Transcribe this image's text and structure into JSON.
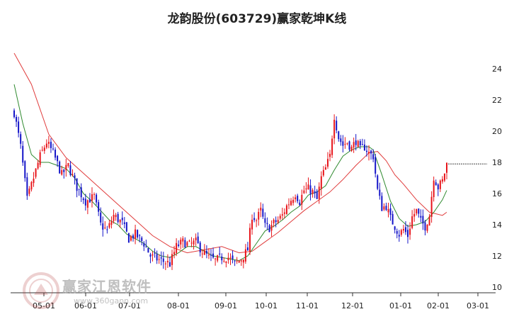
{
  "title": "龙韵股份(603729)赢家乾坤K线",
  "watermark": {
    "text": "赢家江恩软件",
    "url": "www.360gann.com"
  },
  "colors": {
    "up": "#e8151b",
    "down": "#1414c8",
    "ma_long": "#e03c3c",
    "ma_short": "#2f8a2f",
    "axis": "#333333",
    "last_price_line": "#444444"
  },
  "chart_data": {
    "type": "candlestick",
    "title": "龙韵股份(603729)赢家乾坤K线",
    "x_tick_labels": [
      "05-01",
      "06-01",
      "07-01",
      "08-01",
      "09-01",
      "10-01",
      "11-01",
      "12-01",
      "01-01",
      "02-01",
      "03-01"
    ],
    "y_tick_labels": [
      "10",
      "12",
      "14",
      "16",
      "18",
      "20",
      "22",
      "24"
    ],
    "ylim": [
      10,
      24.5
    ],
    "grid": false,
    "last_price": 17.9,
    "close_path": [
      [
        0,
        21.2
      ],
      [
        3,
        19.0
      ],
      [
        6,
        15.6
      ],
      [
        9,
        17.0
      ],
      [
        12,
        18.4
      ],
      [
        15,
        19.3
      ],
      [
        18,
        18.6
      ],
      [
        22,
        17.2
      ],
      [
        25,
        17.8
      ],
      [
        29,
        16.4
      ],
      [
        33,
        15.5
      ],
      [
        37,
        15.8
      ],
      [
        40,
        14.0
      ],
      [
        43,
        13.6
      ],
      [
        46,
        14.6
      ],
      [
        50,
        14.1
      ],
      [
        53,
        13.1
      ],
      [
        56,
        13.4
      ],
      [
        60,
        12.8
      ],
      [
        63,
        12.0
      ],
      [
        66,
        11.8
      ],
      [
        70,
        11.6
      ],
      [
        72,
        11.5
      ],
      [
        75,
        12.6
      ],
      [
        78,
        12.9
      ],
      [
        81,
        12.7
      ],
      [
        84,
        12.9
      ],
      [
        87,
        12.3
      ],
      [
        90,
        11.9
      ],
      [
        93,
        11.7
      ],
      [
        96,
        11.9
      ],
      [
        99,
        11.9
      ],
      [
        102,
        11.5
      ],
      [
        105,
        11.8
      ],
      [
        108,
        12.4
      ],
      [
        110,
        14.6
      ],
      [
        112,
        14.3
      ],
      [
        114,
        14.9
      ],
      [
        116,
        13.9
      ],
      [
        118,
        13.8
      ],
      [
        120,
        14.1
      ],
      [
        122,
        14.3
      ],
      [
        124,
        14.6
      ],
      [
        126,
        15.2
      ],
      [
        128,
        15.6
      ],
      [
        130,
        16.0
      ],
      [
        132,
        15.5
      ],
      [
        134,
        16.2
      ],
      [
        136,
        16.3
      ],
      [
        138,
        16.1
      ],
      [
        140,
        15.6
      ],
      [
        142,
        17.0
      ],
      [
        144,
        17.6
      ],
      [
        146,
        18.4
      ],
      [
        148,
        21.0
      ],
      [
        150,
        19.6
      ],
      [
        152,
        19.1
      ],
      [
        154,
        19.3
      ],
      [
        156,
        18.9
      ],
      [
        158,
        19.4
      ],
      [
        160,
        18.8
      ],
      [
        162,
        19.0
      ],
      [
        164,
        18.6
      ],
      [
        166,
        18.4
      ],
      [
        168,
        16.2
      ],
      [
        170,
        15.1
      ],
      [
        172,
        15.2
      ],
      [
        174,
        14.4
      ],
      [
        176,
        13.9
      ],
      [
        178,
        13.4
      ],
      [
        180,
        13.7
      ],
      [
        182,
        13.3
      ],
      [
        184,
        14.5
      ],
      [
        186,
        14.9
      ],
      [
        188,
        14.2
      ],
      [
        190,
        13.9
      ],
      [
        192,
        14.6
      ],
      [
        194,
        17.1
      ],
      [
        196,
        16.4
      ],
      [
        198,
        16.8
      ],
      [
        200,
        17.9
      ]
    ],
    "ma_long": [
      [
        0,
        25.0
      ],
      [
        8,
        23.0
      ],
      [
        16,
        19.8
      ],
      [
        24,
        18.3
      ],
      [
        32,
        17.3
      ],
      [
        40,
        16.3
      ],
      [
        48,
        15.3
      ],
      [
        56,
        14.3
      ],
      [
        64,
        13.3
      ],
      [
        72,
        12.6
      ],
      [
        80,
        12.2
      ],
      [
        88,
        12.4
      ],
      [
        96,
        12.6
      ],
      [
        104,
        12.2
      ],
      [
        110,
        12.3
      ],
      [
        116,
        12.9
      ],
      [
        122,
        13.5
      ],
      [
        128,
        14.2
      ],
      [
        134,
        14.9
      ],
      [
        140,
        15.5
      ],
      [
        146,
        16.1
      ],
      [
        152,
        16.9
      ],
      [
        158,
        17.8
      ],
      [
        164,
        18.6
      ],
      [
        168,
        18.7
      ],
      [
        172,
        18.1
      ],
      [
        176,
        17.2
      ],
      [
        180,
        16.6
      ],
      [
        186,
        15.6
      ],
      [
        192,
        14.8
      ],
      [
        198,
        14.6
      ],
      [
        200,
        14.8
      ]
    ],
    "ma_short": [
      [
        0,
        23.0
      ],
      [
        4,
        20.5
      ],
      [
        8,
        18.5
      ],
      [
        12,
        18.0
      ],
      [
        16,
        18.0
      ],
      [
        20,
        17.8
      ],
      [
        24,
        17.6
      ],
      [
        28,
        17.0
      ],
      [
        32,
        16.0
      ],
      [
        36,
        15.5
      ],
      [
        40,
        14.9
      ],
      [
        44,
        14.3
      ],
      [
        48,
        14.0
      ],
      [
        52,
        13.4
      ],
      [
        56,
        13.1
      ],
      [
        60,
        12.8
      ],
      [
        64,
        12.3
      ],
      [
        68,
        12.0
      ],
      [
        72,
        11.9
      ],
      [
        76,
        12.2
      ],
      [
        80,
        12.6
      ],
      [
        84,
        12.6
      ],
      [
        88,
        12.3
      ],
      [
        92,
        12.0
      ],
      [
        96,
        11.9
      ],
      [
        100,
        11.8
      ],
      [
        104,
        11.7
      ],
      [
        108,
        12.0
      ],
      [
        112,
        12.8
      ],
      [
        116,
        13.6
      ],
      [
        120,
        13.9
      ],
      [
        124,
        14.3
      ],
      [
        128,
        14.8
      ],
      [
        132,
        15.2
      ],
      [
        136,
        15.9
      ],
      [
        140,
        16.1
      ],
      [
        144,
        16.5
      ],
      [
        148,
        17.5
      ],
      [
        152,
        18.4
      ],
      [
        156,
        18.8
      ],
      [
        160,
        19.0
      ],
      [
        164,
        19.0
      ],
      [
        166,
        18.8
      ],
      [
        170,
        17.2
      ],
      [
        174,
        15.5
      ],
      [
        178,
        14.4
      ],
      [
        182,
        13.9
      ],
      [
        186,
        14.0
      ],
      [
        190,
        14.2
      ],
      [
        194,
        14.8
      ],
      [
        198,
        15.6
      ],
      [
        200,
        16.2
      ]
    ]
  }
}
